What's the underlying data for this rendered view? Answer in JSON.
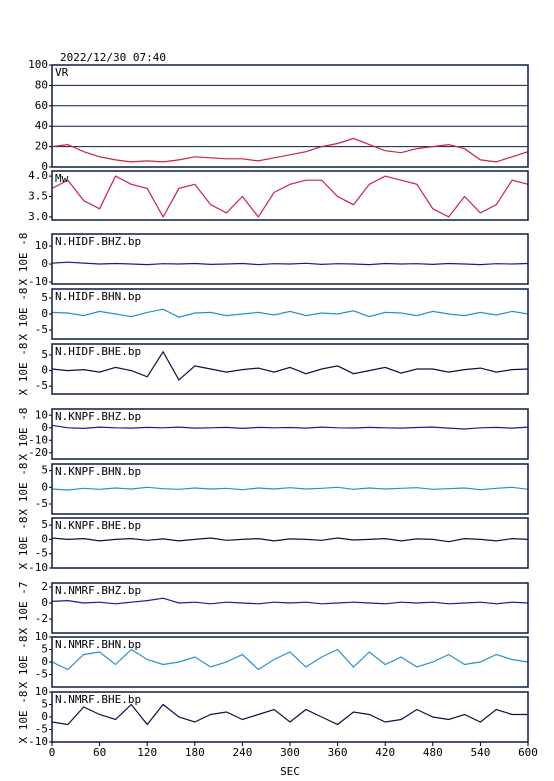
{
  "title": "2022/12/30 07:40",
  "chart_data": [
    {
      "type": "line",
      "title": "VR",
      "ylim": [
        0,
        100
      ],
      "yticks": [
        0,
        20,
        40,
        60,
        80,
        100
      ],
      "grid": true,
      "x": [
        0,
        20,
        40,
        60,
        80,
        100,
        120,
        140,
        160,
        180,
        200,
        220,
        240,
        260,
        280,
        300,
        320,
        340,
        360,
        380,
        400,
        420,
        440,
        460,
        480,
        500,
        520,
        540,
        560,
        580,
        600
      ],
      "series": [
        {
          "color": "#cc1f48",
          "values": [
            20,
            22,
            15,
            10,
            7,
            5,
            6,
            5,
            7,
            10,
            9,
            8,
            8,
            6,
            9,
            12,
            15,
            20,
            23,
            28,
            22,
            16,
            14,
            18,
            20,
            22,
            18,
            7,
            5,
            10,
            15
          ]
        }
      ]
    },
    {
      "type": "line",
      "title": "Mw",
      "ylim": [
        2.925,
        4.125
      ],
      "yticks": [
        {
          "value": 3,
          "label": "3.0"
        },
        3.5,
        {
          "value": 4,
          "label": "4.0"
        }
      ],
      "grid": false,
      "x": [
        0,
        20,
        40,
        60,
        80,
        100,
        120,
        140,
        160,
        180,
        200,
        220,
        240,
        260,
        280,
        300,
        320,
        340,
        360,
        380,
        400,
        420,
        440,
        460,
        480,
        500,
        520,
        540,
        560,
        580,
        600
      ],
      "series": [
        {
          "color": "#cc1f48",
          "values": [
            3.7,
            3.9,
            3.4,
            3.2,
            4.0,
            3.8,
            3.7,
            3.0,
            3.7,
            3.8,
            3.3,
            3.1,
            3.5,
            3.0,
            3.6,
            3.8,
            3.9,
            3.9,
            3.5,
            3.3,
            3.8,
            4.0,
            3.9,
            3.8,
            3.2,
            3.0,
            3.5,
            3.1,
            3.3,
            3.9,
            3.8
          ]
        }
      ]
    },
    {
      "type": "line",
      "title": "N.HIDF.BHZ.bp",
      "ylabel": "X 10E -8",
      "ylim": [
        -11.1,
        16.7
      ],
      "yticks": [
        -10,
        0,
        10
      ],
      "x": [
        0,
        20,
        40,
        60,
        80,
        100,
        120,
        140,
        160,
        180,
        200,
        220,
        240,
        260,
        280,
        300,
        320,
        340,
        360,
        380,
        400,
        420,
        440,
        460,
        480,
        500,
        520,
        540,
        560,
        580,
        600
      ],
      "series": [
        {
          "color": "#1a1a9a",
          "values": [
            0.5,
            1,
            0.5,
            0,
            0.3,
            0,
            -0.3,
            0.2,
            0,
            0.3,
            -0.2,
            0,
            0.3,
            -0.3,
            0.2,
            0,
            0.4,
            -0.2,
            0.2,
            0,
            -0.3,
            0.3,
            0,
            0.2,
            -0.2,
            0.3,
            0,
            -0.3,
            0.2,
            0,
            0.3
          ]
        }
      ]
    },
    {
      "type": "line",
      "title": "N.HIDF.BHN.bp",
      "ylabel": "X 10E -8",
      "ylim": [
        -7.8,
        7.8
      ],
      "yticks": [
        -5,
        0,
        5
      ],
      "x": [
        0,
        20,
        40,
        60,
        80,
        100,
        120,
        140,
        160,
        180,
        200,
        220,
        240,
        260,
        280,
        300,
        320,
        340,
        360,
        380,
        400,
        420,
        440,
        460,
        480,
        500,
        520,
        540,
        560,
        580,
        600
      ],
      "series": [
        {
          "color": "#2a8fd0",
          "values": [
            0.5,
            0.3,
            -0.5,
            0.8,
            0,
            -0.8,
            0.5,
            1.5,
            -1,
            0.3,
            0.5,
            -0.5,
            0,
            0.5,
            -0.3,
            0.8,
            -0.5,
            0.3,
            0,
            1,
            -0.8,
            0.5,
            0.3,
            -0.5,
            0.8,
            0,
            -0.5,
            0.5,
            -0.3,
            0.8,
            0
          ]
        }
      ]
    },
    {
      "type": "line",
      "title": "N.HIDF.BHE.bp",
      "ylabel": "X 10E -8",
      "ylim": [
        -7.5,
        8.5
      ],
      "yticks": [
        -5,
        0,
        5
      ],
      "x": [
        0,
        20,
        40,
        60,
        80,
        100,
        120,
        140,
        160,
        180,
        200,
        220,
        240,
        260,
        280,
        300,
        320,
        340,
        360,
        380,
        400,
        420,
        440,
        460,
        480,
        500,
        520,
        540,
        560,
        580,
        600
      ],
      "series": [
        {
          "color": "#101040",
          "values": [
            0.5,
            0,
            0.3,
            -0.5,
            1,
            0,
            -2,
            6,
            -3,
            1.5,
            0.5,
            -0.5,
            0.3,
            0.8,
            -0.5,
            1,
            -1,
            0.5,
            1.5,
            -1,
            0,
            1,
            -0.8,
            0.5,
            0.5,
            -0.5,
            0.3,
            0.8,
            -0.5,
            0.3,
            0.5
          ]
        }
      ]
    },
    {
      "type": "line",
      "title": "N.KNPF.BHZ.bp",
      "ylabel": "X 10E -8",
      "ylim": [
        -25,
        15
      ],
      "yticks": [
        -20,
        -10,
        0,
        10
      ],
      "x": [
        0,
        20,
        40,
        60,
        80,
        100,
        120,
        140,
        160,
        180,
        200,
        220,
        240,
        260,
        280,
        300,
        320,
        340,
        360,
        380,
        400,
        420,
        440,
        460,
        480,
        500,
        520,
        540,
        560,
        580,
        600
      ],
      "series": [
        {
          "color": "#1a1a9a",
          "values": [
            2,
            0,
            -0.5,
            0.5,
            0,
            -0.3,
            0.3,
            0,
            0.5,
            -0.3,
            0,
            0.3,
            -0.5,
            0.3,
            0,
            0.2,
            -0.3,
            0.5,
            0,
            -0.2,
            0.3,
            0,
            -0.3,
            0.2,
            0.5,
            -0.3,
            -1,
            0,
            0.3,
            -0.3,
            0.5
          ]
        }
      ]
    },
    {
      "type": "line",
      "title": "N.KNPF.BHN.bp",
      "ylabel": "X 10E -8",
      "ylim": [
        -8,
        7
      ],
      "yticks": [
        -5,
        0,
        5
      ],
      "x": [
        0,
        20,
        40,
        60,
        80,
        100,
        120,
        140,
        160,
        180,
        200,
        220,
        240,
        260,
        280,
        300,
        320,
        340,
        360,
        380,
        400,
        420,
        440,
        460,
        480,
        500,
        520,
        540,
        560,
        580,
        600
      ],
      "series": [
        {
          "color": "#2a8fd0",
          "values": [
            -0.5,
            -0.8,
            -0.3,
            -0.6,
            -0.2,
            -0.5,
            0,
            -0.4,
            -0.6,
            -0.2,
            -0.5,
            -0.3,
            -0.7,
            -0.2,
            -0.5,
            -0.1,
            -0.5,
            -0.3,
            0,
            -0.6,
            -0.2,
            -0.5,
            -0.3,
            -0.1,
            -0.6,
            -0.4,
            -0.2,
            -0.7,
            -0.3,
            0,
            -0.6
          ]
        }
      ]
    },
    {
      "type": "line",
      "title": "N.KNPF.BHE.bp",
      "ylabel": "X 10E -8",
      "ylim": [
        -10,
        7.5
      ],
      "yticks": [
        -10,
        -5,
        0,
        5
      ],
      "x": [
        0,
        20,
        40,
        60,
        80,
        100,
        120,
        140,
        160,
        180,
        200,
        220,
        240,
        260,
        280,
        300,
        320,
        340,
        360,
        380,
        400,
        420,
        440,
        460,
        480,
        500,
        520,
        540,
        560,
        580,
        600
      ],
      "series": [
        {
          "color": "#101040",
          "values": [
            0.5,
            0,
            0.3,
            -0.5,
            0,
            0.3,
            -0.3,
            0.2,
            -0.5,
            0,
            0.5,
            -0.3,
            0,
            0.3,
            -0.5,
            0.2,
            0,
            -0.3,
            0.5,
            -0.2,
            0,
            0.3,
            -0.5,
            0.2,
            0,
            -0.8,
            0.3,
            0,
            -0.5,
            0.3,
            0
          ]
        }
      ]
    },
    {
      "type": "line",
      "title": "N.NMRF.BHZ.bp",
      "ylabel": "X 10E -7",
      "ylim": [
        -3.75,
        2.5
      ],
      "yticks": [
        -2,
        0,
        2
      ],
      "x": [
        0,
        20,
        40,
        60,
        80,
        100,
        120,
        140,
        160,
        180,
        200,
        220,
        240,
        260,
        280,
        300,
        320,
        340,
        360,
        380,
        400,
        420,
        440,
        460,
        480,
        500,
        520,
        540,
        560,
        580,
        600
      ],
      "series": [
        {
          "color": "#1a1a9a",
          "values": [
            0.2,
            0.3,
            0,
            0.1,
            -0.1,
            0.1,
            0.3,
            0.6,
            0,
            0.1,
            -0.1,
            0.1,
            0,
            -0.1,
            0.1,
            0,
            0.1,
            -0.1,
            0,
            0.1,
            0,
            -0.1,
            0.1,
            0,
            0.1,
            -0.1,
            0,
            0.1,
            -0.1,
            0.1,
            0
          ]
        }
      ]
    },
    {
      "type": "line",
      "title": "N.NMRF.BHN.bp",
      "ylabel": "X 10E -8",
      "ylim": [
        -10,
        10
      ],
      "yticks": [
        -5,
        0,
        5,
        10
      ],
      "x": [
        0,
        20,
        40,
        60,
        80,
        100,
        120,
        140,
        160,
        180,
        200,
        220,
        240,
        260,
        280,
        300,
        320,
        340,
        360,
        380,
        400,
        420,
        440,
        460,
        480,
        500,
        520,
        540,
        560,
        580,
        600
      ],
      "series": [
        {
          "color": "#2a8fd0",
          "values": [
            0,
            -3,
            3,
            4,
            -1,
            5,
            1,
            -1,
            0,
            2,
            -2,
            0,
            3,
            -3,
            1,
            4,
            -2,
            2,
            5,
            -2,
            4,
            -1,
            2,
            -2,
            0,
            3,
            -1,
            0,
            3,
            1,
            0
          ]
        }
      ]
    },
    {
      "type": "line",
      "title": "N.NMRF.BHE.bp",
      "ylabel": "X 10E -8",
      "ylim": [
        -10,
        10
      ],
      "yticks": [
        -10,
        -5,
        0,
        5,
        10
      ],
      "xlabel": "SEC",
      "xlim": [
        0,
        600
      ],
      "xticks": [
        0,
        60,
        120,
        180,
        240,
        300,
        360,
        420,
        480,
        540,
        600
      ],
      "x": [
        0,
        20,
        40,
        60,
        80,
        100,
        120,
        140,
        160,
        180,
        200,
        220,
        240,
        260,
        280,
        300,
        320,
        340,
        360,
        380,
        400,
        420,
        440,
        460,
        480,
        500,
        520,
        540,
        560,
        580,
        600
      ],
      "series": [
        {
          "color": "#101040",
          "values": [
            -2,
            -3,
            4,
            1,
            -1,
            5,
            -3,
            5,
            0,
            -2,
            1,
            2,
            -1,
            1,
            3,
            -2,
            3,
            0,
            -3,
            2,
            1,
            -2,
            -1,
            3,
            0,
            -1,
            1,
            -2,
            3,
            1,
            1
          ]
        }
      ]
    }
  ]
}
